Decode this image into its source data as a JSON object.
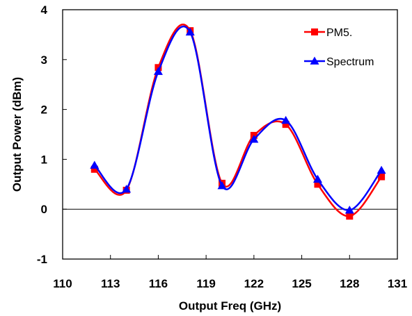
{
  "chart_data": {
    "type": "line",
    "title": "",
    "xlabel": "Output Freq (GHz)",
    "ylabel": "Output Power (dBm)",
    "xlim": [
      110,
      131
    ],
    "ylim": [
      -1,
      4
    ],
    "xticks": [
      "110",
      "113",
      "116",
      "119",
      "122",
      "125",
      "128",
      "131"
    ],
    "yticks": [
      "-1",
      "0",
      "1",
      "2",
      "3",
      "4"
    ],
    "grid": false,
    "legend_position": "top-right",
    "smooth": true,
    "series": [
      {
        "name": "PM5.",
        "color": "#ff0000",
        "marker": "square",
        "x": [
          112,
          114,
          116,
          118,
          120,
          122,
          124,
          126,
          128,
          130
        ],
        "y": [
          0.8,
          0.38,
          2.84,
          3.58,
          0.52,
          1.48,
          1.7,
          0.5,
          -0.14,
          0.65
        ]
      },
      {
        "name": "Spectrum",
        "color": "#0000ff",
        "marker": "triangle",
        "x": [
          112,
          114,
          116,
          118,
          120,
          122,
          124,
          126,
          128,
          130
        ],
        "y": [
          0.88,
          0.4,
          2.76,
          3.55,
          0.47,
          1.4,
          1.78,
          0.6,
          -0.02,
          0.78
        ]
      }
    ]
  }
}
